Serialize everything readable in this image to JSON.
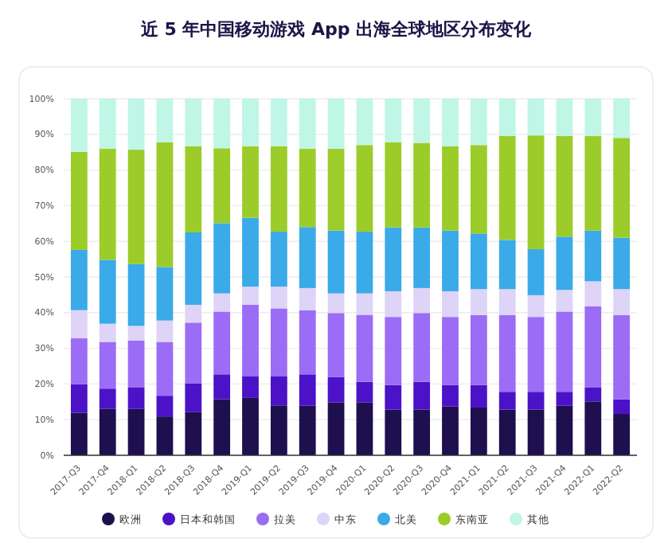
{
  "chart_data": {
    "type": "bar",
    "title": "近 5 年中国移动游戏 App 出海全球地区分布变化",
    "stacked": true,
    "categories": [
      "2017-Q3",
      "2017-Q4",
      "2018-Q1",
      "2018-Q2",
      "2018-Q3",
      "2018-Q4",
      "2019-Q1",
      "2019-Q2",
      "2019-Q3",
      "2019-Q4",
      "2020-Q1",
      "2020-Q2",
      "2020-Q3",
      "2020-Q4",
      "2021-Q1",
      "2021-Q2",
      "2021-Q3",
      "2021-Q4",
      "2022-Q1",
      "2022-Q2"
    ],
    "series": [
      {
        "name": "欧洲",
        "color": "#1e0f4f",
        "values": [
          11.9,
          13.0,
          13.0,
          10.9,
          12.1,
          15.7,
          16.1,
          14.0,
          13.9,
          14.8,
          14.8,
          12.8,
          12.8,
          13.7,
          13.4,
          12.8,
          12.8,
          13.9,
          15.1,
          11.6
        ]
      },
      {
        "name": "日本和韩国",
        "color": "#4b12c8",
        "values": [
          8.0,
          5.7,
          6.1,
          5.8,
          8.0,
          7.0,
          6.0,
          8.1,
          8.8,
          7.1,
          5.8,
          6.9,
          7.8,
          6.0,
          6.3,
          5.0,
          5.0,
          3.9,
          4.0,
          4.1
        ]
      },
      {
        "name": "拉美",
        "color": "#9b6cf5",
        "values": [
          12.9,
          13.1,
          13.1,
          15.1,
          17.1,
          17.6,
          20.1,
          19.1,
          18.0,
          18.0,
          18.8,
          19.1,
          19.3,
          19.1,
          19.6,
          21.5,
          21.0,
          22.5,
          22.7,
          23.6
        ]
      },
      {
        "name": "中东",
        "color": "#ddd4f7",
        "values": [
          7.9,
          5.1,
          4.1,
          6.0,
          5.0,
          5.1,
          5.1,
          6.1,
          6.2,
          5.5,
          6.0,
          7.2,
          7.0,
          7.2,
          7.3,
          7.3,
          6.1,
          6.1,
          7.0,
          7.3
        ]
      },
      {
        "name": "北美",
        "color": "#3aaae8",
        "values": [
          16.9,
          17.9,
          17.3,
          15.0,
          20.3,
          19.7,
          19.3,
          15.4,
          17.1,
          17.6,
          17.3,
          17.9,
          17.0,
          17.0,
          15.6,
          13.8,
          12.9,
          14.9,
          14.2,
          14.4
        ]
      },
      {
        "name": "东南亚",
        "color": "#9ccc2a",
        "values": [
          27.5,
          31.2,
          32.1,
          35.0,
          24.2,
          21.0,
          20.1,
          24.0,
          22.0,
          23.0,
          24.3,
          23.9,
          23.7,
          23.7,
          24.8,
          29.2,
          31.9,
          28.3,
          26.6,
          28.0
        ]
      },
      {
        "name": "其他",
        "color": "#bff6e6",
        "values": [
          14.9,
          14.0,
          14.3,
          12.2,
          13.3,
          13.9,
          13.3,
          13.3,
          14.0,
          14.0,
          13.0,
          12.2,
          12.4,
          13.3,
          13.0,
          10.4,
          10.3,
          10.4,
          10.4,
          11.0
        ]
      }
    ],
    "ylim": [
      0,
      100
    ],
    "yticks": [
      {
        "value": 0,
        "label": "0%"
      },
      {
        "value": 10,
        "label": "10%"
      },
      {
        "value": 20,
        "label": "20%"
      },
      {
        "value": 30,
        "label": "30%"
      },
      {
        "value": 40,
        "label": "40%"
      },
      {
        "value": 50,
        "label": "50%"
      },
      {
        "value": 60,
        "label": "60%"
      },
      {
        "value": 70,
        "label": "70%"
      },
      {
        "value": 80,
        "label": "80%"
      },
      {
        "value": 90,
        "label": "90%"
      },
      {
        "value": 100,
        "label": "100%"
      }
    ],
    "grid": "y",
    "legend": "bottom"
  }
}
